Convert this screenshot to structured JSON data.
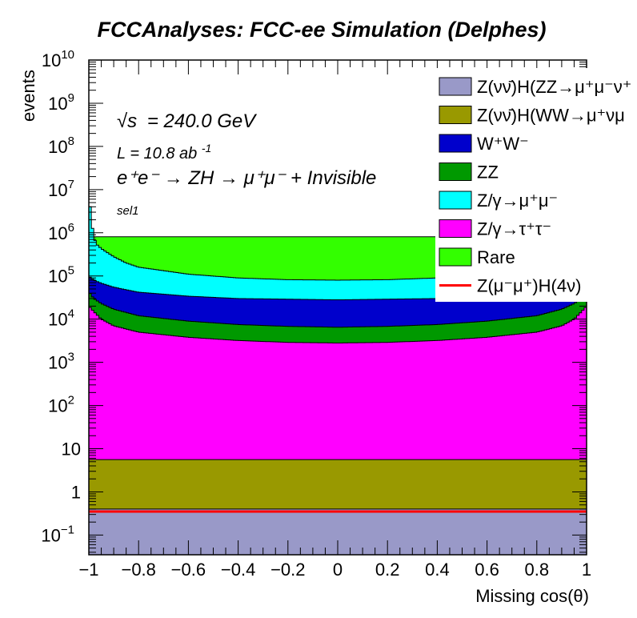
{
  "chart_data": {
    "type": "area",
    "title": "FCCAnalyses: FCC-ee Simulation (Delphes)",
    "xlabel": "Missing cos(θ)",
    "ylabel": "events",
    "xlim": [
      -1,
      1
    ],
    "ylim": [
      0.035,
      10000000000
    ],
    "yscale": "log",
    "grid": false,
    "legend_position": "top-right",
    "x_ticks": [
      "−1",
      "−0.8",
      "−0.6",
      "−0.4",
      "−0.2",
      "0",
      "0.2",
      "0.4",
      "0.6",
      "0.8",
      "1"
    ],
    "y_ticks": [
      {
        "value": 0.1,
        "base": "10",
        "exp": "−1"
      },
      {
        "value": 1,
        "base": "1",
        "exp": ""
      },
      {
        "value": 10,
        "base": "10",
        "exp": ""
      },
      {
        "value": 100,
        "base": "10",
        "exp": "2"
      },
      {
        "value": 1000,
        "base": "10",
        "exp": "3"
      },
      {
        "value": 10000,
        "base": "10",
        "exp": "4"
      },
      {
        "value": 100000,
        "base": "10",
        "exp": "5"
      },
      {
        "value": 1000000,
        "base": "10",
        "exp": "6"
      },
      {
        "value": 10000000,
        "base": "10",
        "exp": "7"
      },
      {
        "value": 100000000,
        "base": "10",
        "exp": "8"
      },
      {
        "value": 1000000000,
        "base": "10",
        "exp": "9"
      },
      {
        "value": 10000000000,
        "base": "10",
        "exp": "10"
      }
    ],
    "annotations": {
      "sqrt_s": "= 240.0 GeV",
      "sqrt_s_symbol": "√s",
      "lumi": "L = 10.8 ab",
      "lumi_exp": "-1",
      "process": "e⁺e⁻ → ZH → μ⁺μ⁻ + Invisible",
      "selection": "sel1"
    },
    "stack_boundaries_center": [
      {
        "name": "Z(νν̄)H(ZZ→μ⁺μ⁻ν⁺",
        "top": 0.4
      },
      {
        "name": "Z(νν̄)H(WW→μ⁺νμ",
        "top": 6
      },
      {
        "name": "Z/γ→τ⁺τ⁻",
        "top": 2800
      },
      {
        "name": "ZZ",
        "top": 6500
      },
      {
        "name": "W⁺W⁻",
        "top": 28000
      },
      {
        "name": "Z/γ→μ⁺μ⁻",
        "top": 80000
      }
    ],
    "series": [
      {
        "name": "Z(νν̄)H(ZZ→μ⁺μ⁻ν⁺",
        "color": "#9999c8",
        "x": [
          -1,
          -0.98,
          -0.5,
          0,
          0.5,
          0.98,
          1
        ],
        "values": [
          0.4,
          0.4,
          0.4,
          0.4,
          0.4,
          0.4,
          0.4
        ]
      },
      {
        "name": "Z(νν̄)H(WW→μ⁺νμ",
        "color": "#999900",
        "x": [
          -1,
          -0.98,
          -0.5,
          0,
          0.5,
          0.98,
          1
        ],
        "values": [
          5.6,
          5.6,
          5.6,
          5.6,
          5.6,
          5.6,
          5.6
        ]
      },
      {
        "name": "Z/γ→τ⁺τ⁻",
        "color": "#ff00ff",
        "x": [
          -1,
          -0.98,
          -0.95,
          -0.9,
          -0.8,
          -0.6,
          -0.4,
          -0.2,
          0,
          0.2,
          0.4,
          0.6,
          0.8,
          0.9,
          0.95,
          0.98,
          1
        ],
        "values": [
          20000,
          15000,
          10000,
          7000,
          5000,
          3800,
          3200,
          2900,
          2800,
          2900,
          3200,
          3800,
          5000,
          7000,
          10000,
          15000,
          20000
        ]
      },
      {
        "name": "ZZ",
        "color": "#009900",
        "x": [
          -1,
          -0.98,
          -0.95,
          -0.9,
          -0.8,
          -0.6,
          -0.4,
          -0.2,
          0,
          0.2,
          0.4,
          0.6,
          0.8,
          0.9,
          0.95,
          0.98,
          1
        ],
        "values": [
          43000,
          30000,
          23000,
          17000,
          12000,
          9000,
          7500,
          6800,
          6500,
          6800,
          7500,
          9000,
          12000,
          17000,
          23000,
          30000,
          43000
        ]
      },
      {
        "name": "W⁺W⁻",
        "color": "#0000cc",
        "x": [
          -1,
          -0.98,
          -0.95,
          -0.9,
          -0.8,
          -0.6,
          -0.4,
          -0.2,
          0,
          0.2,
          0.4,
          0.6,
          0.8,
          0.9,
          0.95,
          0.98,
          1
        ],
        "values": [
          99000,
          80000,
          68000,
          55000,
          42000,
          34000,
          30000,
          29000,
          28000,
          29000,
          30000,
          34000,
          42000,
          55000,
          68000,
          80000,
          99000
        ]
      },
      {
        "name": "Z/γ→μ⁺μ⁻",
        "color": "#00ffff",
        "x": [
          -1,
          -0.99,
          -0.98,
          -0.97,
          -0.95,
          -0.9,
          -0.85,
          -0.8,
          -0.6,
          -0.4,
          -0.2,
          0,
          0.2,
          0.4,
          0.6,
          0.8,
          0.85,
          0.9,
          0.95,
          0.97,
          0.98,
          0.99,
          1
        ],
        "values": [
          8000000,
          2000000,
          800000,
          550000,
          430000,
          280000,
          200000,
          160000,
          110000,
          90000,
          82000,
          80000,
          82000,
          90000,
          110000,
          160000,
          200000,
          280000,
          430000,
          550000,
          800000,
          2000000,
          8000000
        ]
      },
      {
        "name": "Rare",
        "color": "#33ff00",
        "x": [
          -1,
          -0.995,
          -0.99,
          0.99,
          0.995,
          1
        ],
        "values": [
          8500000,
          2200000,
          810000,
          810000,
          2200000,
          8500000
        ]
      }
    ],
    "signal_line": {
      "name": "Z(μ⁻μ⁺)H(4ν)",
      "color": "#ff0000",
      "value": 0.35,
      "x": [
        -1,
        1
      ]
    },
    "legend": [
      {
        "label": "Z(νν̄)H(ZZ→μ⁺μ⁻ν⁺",
        "color": "#9999c8",
        "kind": "box"
      },
      {
        "label": "Z(νν̄)H(WW→μ⁺νμ",
        "color": "#999900",
        "kind": "box"
      },
      {
        "label": "W⁺W⁻",
        "color": "#0000cc",
        "kind": "box"
      },
      {
        "label": "ZZ",
        "color": "#009900",
        "kind": "box"
      },
      {
        "label": "Z/γ→μ⁺μ⁻",
        "color": "#00ffff",
        "kind": "box"
      },
      {
        "label": "Z/γ→τ⁺τ⁻",
        "color": "#ff00ff",
        "kind": "box"
      },
      {
        "label": "Rare",
        "color": "#33ff00",
        "kind": "box"
      },
      {
        "label": "Z(μ⁻μ⁺)H(4ν)",
        "color": "#ff0000",
        "kind": "line"
      }
    ]
  }
}
